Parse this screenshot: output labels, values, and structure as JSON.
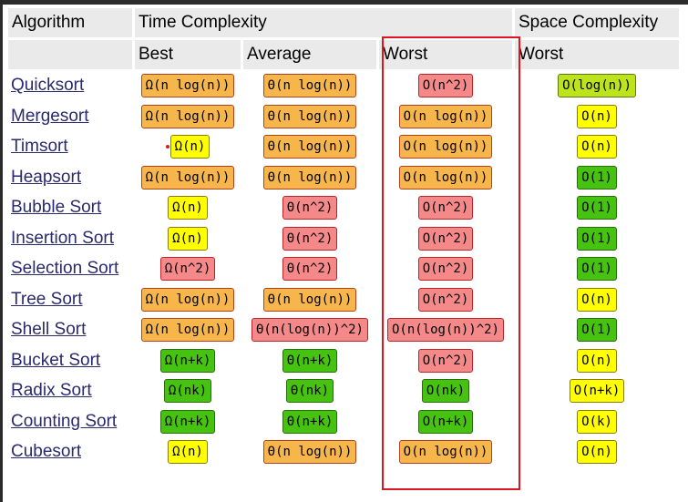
{
  "headers": {
    "algorithm": "Algorithm",
    "time": "Time Complexity",
    "space": "Space Complexity",
    "best": "Best",
    "average": "Average",
    "worst": "Worst",
    "space_worst": "Worst"
  },
  "colors": {
    "orange": "#f6b64c",
    "red": "#f5898a",
    "yellow": "#ffff00",
    "green": "#46c210",
    "lime": "#bde31d",
    "highlight_border": "#e0141e"
  },
  "rows": [
    {
      "name": "Quicksort",
      "best": {
        "v": "Ω(n log(n))",
        "c": "orange"
      },
      "avg": {
        "v": "Θ(n log(n))",
        "c": "orange"
      },
      "worst": {
        "v": "O(n^2)",
        "c": "red"
      },
      "space": {
        "v": "O(log(n))",
        "c": "lime"
      }
    },
    {
      "name": "Mergesort",
      "best": {
        "v": "Ω(n log(n))",
        "c": "orange"
      },
      "avg": {
        "v": "Θ(n log(n))",
        "c": "orange"
      },
      "worst": {
        "v": "O(n log(n))",
        "c": "orange"
      },
      "space": {
        "v": "O(n)",
        "c": "yellow"
      }
    },
    {
      "name": "Timsort",
      "best": {
        "v": "Ω(n)",
        "c": "yellow"
      },
      "avg": {
        "v": "Θ(n log(n))",
        "c": "orange"
      },
      "worst": {
        "v": "O(n log(n))",
        "c": "orange"
      },
      "space": {
        "v": "O(n)",
        "c": "yellow"
      }
    },
    {
      "name": "Heapsort",
      "best": {
        "v": "Ω(n log(n))",
        "c": "orange"
      },
      "avg": {
        "v": "Θ(n log(n))",
        "c": "orange"
      },
      "worst": {
        "v": "O(n log(n))",
        "c": "orange"
      },
      "space": {
        "v": "O(1)",
        "c": "green"
      }
    },
    {
      "name": "Bubble Sort",
      "best": {
        "v": "Ω(n)",
        "c": "yellow"
      },
      "avg": {
        "v": "Θ(n^2)",
        "c": "red"
      },
      "worst": {
        "v": "O(n^2)",
        "c": "red"
      },
      "space": {
        "v": "O(1)",
        "c": "green"
      }
    },
    {
      "name": "Insertion Sort",
      "best": {
        "v": "Ω(n)",
        "c": "yellow"
      },
      "avg": {
        "v": "Θ(n^2)",
        "c": "red"
      },
      "worst": {
        "v": "O(n^2)",
        "c": "red"
      },
      "space": {
        "v": "O(1)",
        "c": "green"
      }
    },
    {
      "name": "Selection Sort",
      "best": {
        "v": "Ω(n^2)",
        "c": "red"
      },
      "avg": {
        "v": "Θ(n^2)",
        "c": "red"
      },
      "worst": {
        "v": "O(n^2)",
        "c": "red"
      },
      "space": {
        "v": "O(1)",
        "c": "green"
      }
    },
    {
      "name": "Tree Sort",
      "best": {
        "v": "Ω(n log(n))",
        "c": "orange"
      },
      "avg": {
        "v": "Θ(n log(n))",
        "c": "orange"
      },
      "worst": {
        "v": "O(n^2)",
        "c": "red"
      },
      "space": {
        "v": "O(n)",
        "c": "yellow"
      }
    },
    {
      "name": "Shell Sort",
      "best": {
        "v": "Ω(n log(n))",
        "c": "orange"
      },
      "avg": {
        "v": "Θ(n(log(n))^2)",
        "c": "red"
      },
      "worst": {
        "v": "O(n(log(n))^2)",
        "c": "red"
      },
      "space": {
        "v": "O(1)",
        "c": "green"
      }
    },
    {
      "name": "Bucket Sort",
      "best": {
        "v": "Ω(n+k)",
        "c": "green"
      },
      "avg": {
        "v": "Θ(n+k)",
        "c": "green"
      },
      "worst": {
        "v": "O(n^2)",
        "c": "red"
      },
      "space": {
        "v": "O(n)",
        "c": "yellow"
      }
    },
    {
      "name": "Radix Sort",
      "best": {
        "v": "Ω(nk)",
        "c": "green"
      },
      "avg": {
        "v": "Θ(nk)",
        "c": "green"
      },
      "worst": {
        "v": "O(nk)",
        "c": "green"
      },
      "space": {
        "v": "O(n+k)",
        "c": "yellow"
      }
    },
    {
      "name": "Counting Sort",
      "best": {
        "v": "Ω(n+k)",
        "c": "green"
      },
      "avg": {
        "v": "Θ(n+k)",
        "c": "green"
      },
      "worst": {
        "v": "O(n+k)",
        "c": "green"
      },
      "space": {
        "v": "O(k)",
        "c": "yellow"
      }
    },
    {
      "name": "Cubesort",
      "best": {
        "v": "Ω(n)",
        "c": "yellow"
      },
      "avg": {
        "v": "Θ(n log(n))",
        "c": "orange"
      },
      "worst": {
        "v": "O(n log(n))",
        "c": "orange"
      },
      "space": {
        "v": "O(n)",
        "c": "yellow"
      }
    }
  ]
}
